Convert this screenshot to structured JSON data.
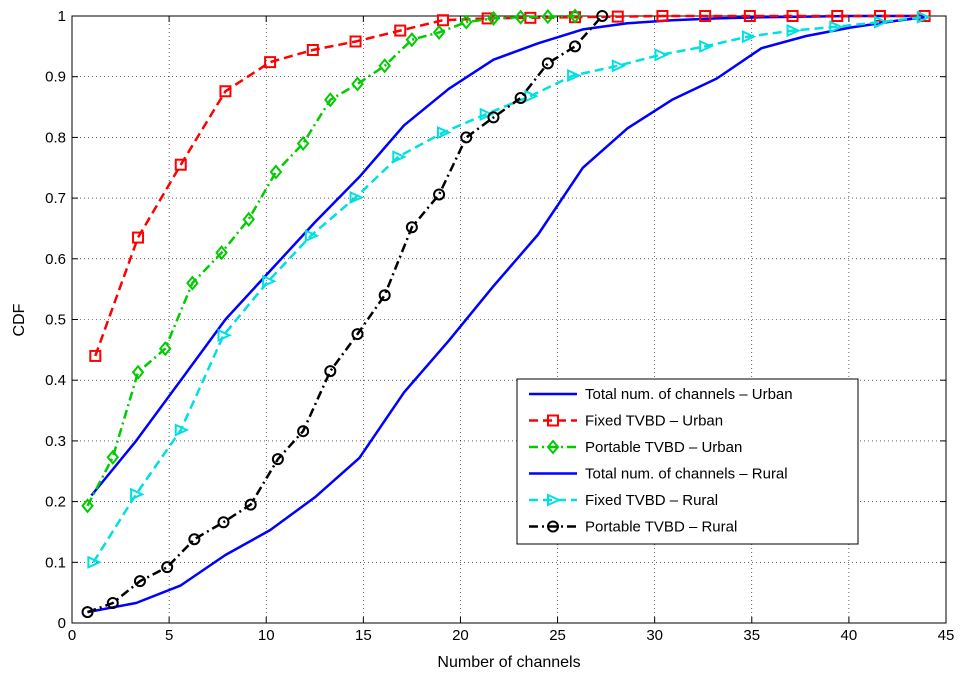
{
  "chart_data": {
    "type": "line",
    "xlabel": "Number of channels",
    "ylabel": "CDF",
    "xlim": [
      0,
      45
    ],
    "ylim": [
      0,
      1
    ],
    "xticks": [
      0,
      5,
      10,
      15,
      20,
      25,
      30,
      35,
      40,
      45
    ],
    "yticks": [
      0,
      0.1,
      0.2,
      0.3,
      0.4,
      0.5,
      0.6,
      0.7,
      0.8,
      0.9,
      1
    ],
    "ytick_labels": [
      "0",
      "0.1",
      "0.2",
      "0.3",
      "0.4",
      "0.5",
      "0.6",
      "0.7",
      "0.8",
      "0.9",
      "1"
    ],
    "grid": true,
    "legend_position": "lower-right",
    "series": [
      {
        "name": "Total num. of channels – Urban",
        "color": "#0000ff",
        "dash": "solid",
        "marker": "none",
        "x": [
          1,
          3.3,
          5.6,
          7.9,
          10.2,
          12.5,
          14.8,
          17.1,
          19.4,
          21.7,
          24,
          26.3,
          28.6,
          30.9,
          33.2,
          35.5,
          37.8,
          40.1,
          42.4,
          43.9
        ],
        "y": [
          0.21,
          0.3,
          0.4,
          0.5,
          0.58,
          0.66,
          0.735,
          0.82,
          0.88,
          0.928,
          0.955,
          0.978,
          0.988,
          0.993,
          0.996,
          0.998,
          0.999,
          1,
          1,
          1
        ]
      },
      {
        "name": "Fixed TVBD – Urban",
        "color": "#ff0000",
        "dash": "dashed",
        "marker": "square",
        "x": [
          1.2,
          3.4,
          5.6,
          7.9,
          10.2,
          12.4,
          14.6,
          16.9,
          19.1,
          21.4,
          23.6,
          25.9,
          28.1,
          30.4,
          32.6,
          34.9,
          37.1,
          39.4,
          41.6,
          43.9
        ],
        "y": [
          0.44,
          0.635,
          0.755,
          0.876,
          0.924,
          0.944,
          0.958,
          0.976,
          0.993,
          0.996,
          0.997,
          0.998,
          0.999,
          1,
          1,
          1,
          1,
          1,
          1,
          1
        ]
      },
      {
        "name": "Portable TVBD – Urban",
        "color": "#00cc00",
        "dash": "dashdot",
        "marker": "diamond",
        "x": [
          0.8,
          2.1,
          3.4,
          4.8,
          6.2,
          7.7,
          9.1,
          10.5,
          11.9,
          13.3,
          14.7,
          16.1,
          17.5,
          18.9,
          20.3,
          21.7,
          23.1,
          24.5,
          25.9
        ],
        "y": [
          0.193,
          0.273,
          0.413,
          0.452,
          0.56,
          0.61,
          0.665,
          0.743,
          0.79,
          0.862,
          0.888,
          0.918,
          0.961,
          0.973,
          0.99,
          0.996,
          0.998,
          0.999,
          1
        ]
      },
      {
        "name": "Total num. of channels – Rural",
        "color": "#0000ff",
        "dash": "solid",
        "marker": "none",
        "x": [
          0.8,
          3.3,
          5.6,
          7.9,
          10.2,
          12.5,
          14.8,
          17.1,
          19.4,
          21.7,
          24,
          26.3,
          28.6,
          30.9,
          33.2,
          35.5,
          37.8,
          40.1,
          42.4,
          43.9
        ],
        "y": [
          0.018,
          0.033,
          0.062,
          0.112,
          0.153,
          0.207,
          0.272,
          0.38,
          0.465,
          0.555,
          0.64,
          0.75,
          0.815,
          0.862,
          0.897,
          0.947,
          0.967,
          0.981,
          0.992,
          0.998
        ]
      },
      {
        "name": "Fixed TVBD – Rural",
        "color": "#00e0e0",
        "dash": "dashed",
        "marker": "triangle-right",
        "x": [
          1.1,
          3.3,
          5.6,
          7.8,
          10.1,
          12.3,
          14.6,
          16.8,
          19.1,
          21.3,
          23.6,
          25.8,
          28.1,
          30.3,
          32.6,
          34.8,
          37.1,
          39.3,
          41.6,
          43.8
        ],
        "y": [
          0.1,
          0.212,
          0.318,
          0.474,
          0.563,
          0.638,
          0.701,
          0.768,
          0.808,
          0.838,
          0.868,
          0.902,
          0.918,
          0.936,
          0.95,
          0.966,
          0.976,
          0.982,
          0.99,
          0.998
        ]
      },
      {
        "name": "Portable TVBD – Rural",
        "color": "#000000",
        "dash": "dashdot",
        "marker": "circle",
        "x": [
          0.8,
          2.1,
          3.5,
          4.9,
          6.3,
          7.8,
          9.2,
          10.6,
          11.9,
          13.3,
          14.7,
          16.1,
          17.5,
          18.9,
          20.3,
          21.7,
          23.1,
          24.5,
          25.9,
          27.3
        ],
        "y": [
          0.018,
          0.033,
          0.069,
          0.092,
          0.138,
          0.166,
          0.195,
          0.27,
          0.316,
          0.415,
          0.476,
          0.54,
          0.652,
          0.706,
          0.8,
          0.833,
          0.865,
          0.922,
          0.95,
          1
        ]
      }
    ]
  }
}
